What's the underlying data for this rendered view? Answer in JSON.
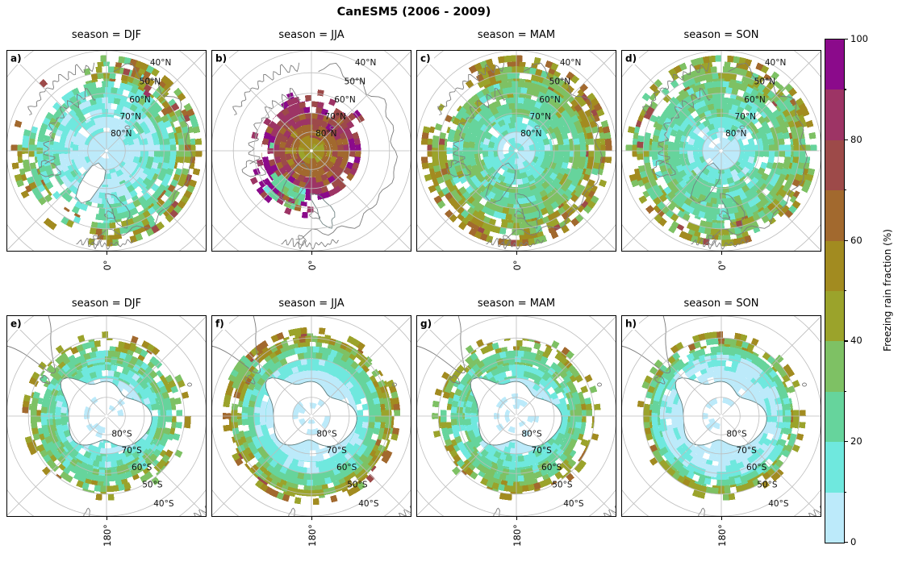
{
  "chart_data": {
    "type": "heatmap",
    "title": "CanESM5 (2006 - 2009)",
    "model": "CanESM5",
    "period": "2006 - 2009",
    "variable": "Freezing rain fraction (%)",
    "projection": "polar stereographic",
    "colorbar": {
      "label": "Freezing rain fraction (%)",
      "min": 0,
      "max": 100,
      "major_ticks": [
        0,
        20,
        40,
        60,
        80,
        100
      ],
      "minor_ticks": [
        10,
        30,
        50,
        70,
        90
      ],
      "levels": [
        0,
        10,
        20,
        30,
        40,
        50,
        60,
        70,
        80,
        90,
        100
      ],
      "colors": [
        "#bceafa",
        "#6fe8de",
        "#66d49c",
        "#7ec164",
        "#9ba32b",
        "#a28b20",
        "#a2692e",
        "#9d4a49",
        "#9d3465",
        "#8b0a8b"
      ]
    },
    "graticule": {
      "lat_interval_deg": 10,
      "lon_interval_deg": 45
    },
    "panels": [
      {
        "id": "a)",
        "title": "season = DJF",
        "season": "DJF",
        "hemisphere": "Northern",
        "x_tick": "0°",
        "lat_labels": [
          "40°N",
          "50°N",
          "60°N",
          "70°N",
          "80°N"
        ],
        "lats": [
          40,
          50,
          60,
          70,
          80
        ],
        "seed": 11,
        "mask_land": true,
        "rings": [
          {
            "lat0": 80,
            "lat1": 90,
            "pct": 4,
            "jit": 5,
            "cov": 0.88
          },
          {
            "lat0": 72,
            "lat1": 80,
            "pct": 7,
            "jit": 6,
            "cov": 0.96
          },
          {
            "lat0": 62,
            "lat1": 72,
            "pct": 13,
            "jit": 9,
            "cov": 0.96
          },
          {
            "lat0": 54,
            "lat1": 62,
            "pct": 22,
            "jit": 11,
            "cov": 0.92,
            "gaps": [
              [
                100,
                145,
                0.55
              ]
            ]
          },
          {
            "lat0": 47,
            "lat1": 54,
            "pct": 33,
            "jit": 15,
            "cov": 0.8,
            "hot": 0.1,
            "hotv": 60,
            "gaps": [
              [
                195,
                255,
                0.12
              ],
              [
                100,
                145,
                0.3
              ]
            ]
          },
          {
            "lat0": 42,
            "lat1": 47,
            "pct": 44,
            "jit": 18,
            "cov": 0.55,
            "hot": 0.14,
            "hotv": 68,
            "gaps": [
              [
                185,
                265,
                0.07
              ],
              [
                95,
                150,
                0.3
              ]
            ]
          },
          {
            "lat0": 47,
            "lat1": 55,
            "pct": 60,
            "jit": 9,
            "cov": 0.4,
            "arc": [
              282,
              334
            ],
            "hot": 0.3,
            "hotv": 75
          }
        ]
      },
      {
        "id": "b)",
        "title": "season = JJA",
        "season": "JJA",
        "hemisphere": "Northern",
        "x_tick": "0°",
        "lat_labels": [
          "40°N",
          "50°N",
          "60°N",
          "70°N",
          "80°N"
        ],
        "lats": [
          40,
          50,
          60,
          70,
          80
        ],
        "seed": 22,
        "mask_land": false,
        "rings": [
          {
            "lat0": 83,
            "lat1": 90,
            "pct": 55,
            "jit": 9,
            "cov": 1
          },
          {
            "lat0": 76,
            "lat1": 83,
            "pct": 65,
            "jit": 10,
            "cov": 1
          },
          {
            "lat0": 70,
            "lat1": 76,
            "pct": 75,
            "jit": 12,
            "cov": 0.96,
            "hot": 0.06,
            "hotv": 93
          },
          {
            "lat0": 64,
            "lat1": 70,
            "pct": 82,
            "jit": 14,
            "cov": 0.72,
            "hot": 0.12,
            "hotv": 94
          },
          {
            "lat0": 58,
            "lat1": 64,
            "pct": 80,
            "jit": 18,
            "cov": 0.3,
            "hot": 0.15,
            "hotv": 94,
            "arc": [
              150,
              330
            ]
          },
          {
            "lat0": 58,
            "lat1": 70,
            "pct": 24,
            "jit": 10,
            "cov": 0.8,
            "arc": [
              98,
              142
            ]
          },
          {
            "lat0": 55,
            "lat1": 63,
            "pct": 82,
            "jit": 16,
            "cov": 0.4,
            "arc": [
              88,
              155
            ],
            "hot": 0.2,
            "hotv": 93
          },
          {
            "lat0": 62,
            "lat1": 70,
            "pct": 26,
            "jit": 8,
            "cov": 0.15,
            "arc": [
              142,
              200
            ]
          }
        ]
      },
      {
        "id": "c)",
        "title": "season = MAM",
        "season": "MAM",
        "hemisphere": "Northern",
        "x_tick": "0°",
        "lat_labels": [
          "40°N",
          "50°N",
          "60°N",
          "70°N",
          "80°N"
        ],
        "lats": [
          40,
          50,
          60,
          70,
          80
        ],
        "seed": 33,
        "mask_land": false,
        "rings": [
          {
            "lat0": 80,
            "lat1": 90,
            "pct": 7,
            "jit": 6,
            "cov": 0.88
          },
          {
            "lat0": 72,
            "lat1": 80,
            "pct": 17,
            "jit": 8,
            "cov": 0.96
          },
          {
            "lat0": 62,
            "lat1": 72,
            "pct": 25,
            "jit": 8,
            "cov": 0.97
          },
          {
            "lat0": 54,
            "lat1": 62,
            "pct": 30,
            "jit": 12,
            "cov": 0.95
          },
          {
            "lat0": 47,
            "lat1": 54,
            "pct": 42,
            "jit": 14,
            "cov": 0.88,
            "hot": 0.12,
            "hotv": 65,
            "gaps": [
              [
                198,
                242,
                0.3
              ]
            ]
          },
          {
            "lat0": 42,
            "lat1": 47,
            "pct": 50,
            "jit": 16,
            "cov": 0.62,
            "hot": 0.12,
            "hotv": 70,
            "gaps": [
              [
                198,
                242,
                0.3
              ]
            ]
          }
        ]
      },
      {
        "id": "d)",
        "title": "season = SON",
        "season": "SON",
        "hemisphere": "Northern",
        "x_tick": "0°",
        "lat_labels": [
          "40°N",
          "50°N",
          "60°N",
          "70°N",
          "80°N"
        ],
        "lats": [
          40,
          50,
          60,
          70,
          80
        ],
        "seed": 44,
        "mask_land": false,
        "rings": [
          {
            "lat0": 80,
            "lat1": 90,
            "pct": 6,
            "jit": 6,
            "cov": 0.86
          },
          {
            "lat0": 72,
            "lat1": 80,
            "pct": 15,
            "jit": 8,
            "cov": 0.95
          },
          {
            "lat0": 62,
            "lat1": 72,
            "pct": 24,
            "jit": 8,
            "cov": 0.96
          },
          {
            "lat0": 54,
            "lat1": 62,
            "pct": 27,
            "jit": 10,
            "cov": 0.94
          },
          {
            "lat0": 47,
            "lat1": 54,
            "pct": 35,
            "jit": 13,
            "cov": 0.85,
            "hot": 0.09,
            "hotv": 63,
            "gaps": [
              [
                192,
                238,
                0.4
              ]
            ]
          },
          {
            "lat0": 42,
            "lat1": 47,
            "pct": 42,
            "jit": 16,
            "cov": 0.55,
            "hot": 0.11,
            "hotv": 68
          }
        ]
      },
      {
        "id": "e)",
        "title": "season = DJF",
        "season": "DJF",
        "hemisphere": "Southern",
        "x_tick": "180°",
        "lat_labels": [
          "80°S",
          "70°S",
          "60°S",
          "50°S",
          "40°S"
        ],
        "lats": [
          80,
          70,
          60,
          50,
          40
        ],
        "seed": 55,
        "mask_land": true,
        "rings": [
          {
            "lat0": 78,
            "lat1": 86,
            "pct": 3,
            "jit": 4,
            "cov": 0.3,
            "over": 1
          },
          {
            "lat0": 70,
            "lat1": 78,
            "pct": 7,
            "jit": 6,
            "cov": 0.85
          },
          {
            "lat0": 63,
            "lat1": 70,
            "pct": 16,
            "jit": 8,
            "cov": 0.96
          },
          {
            "lat0": 56,
            "lat1": 63,
            "pct": 25,
            "jit": 10,
            "cov": 0.96
          },
          {
            "lat0": 51,
            "lat1": 56,
            "pct": 33,
            "jit": 13,
            "cov": 0.7,
            "hot": 0.1,
            "hotv": 52
          },
          {
            "lat0": 47,
            "lat1": 51,
            "pct": 44,
            "jit": 13,
            "cov": 0.25,
            "hot": 0.1,
            "hotv": 58
          }
        ]
      },
      {
        "id": "f)",
        "title": "season = JJA",
        "season": "JJA",
        "hemisphere": "Southern",
        "x_tick": "180°",
        "lat_labels": [
          "80°S",
          "70°S",
          "60°S",
          "50°S",
          "40°S"
        ],
        "lats": [
          80,
          70,
          60,
          50,
          40
        ],
        "seed": 66,
        "mask_land": true,
        "rings": [
          {
            "lat0": 80,
            "lat1": 88,
            "pct": 3,
            "jit": 3,
            "cov": 0.3,
            "over": 1
          },
          {
            "lat0": 66,
            "lat1": 80,
            "pct": 4,
            "jit": 4,
            "cov": 0.97
          },
          {
            "lat0": 60,
            "lat1": 66,
            "pct": 13,
            "jit": 6,
            "cov": 0.97
          },
          {
            "lat0": 54,
            "lat1": 60,
            "pct": 24,
            "jit": 8,
            "cov": 0.96
          },
          {
            "lat0": 49,
            "lat1": 54,
            "pct": 41,
            "jit": 12,
            "cov": 0.9,
            "hot": 0.07,
            "hotv": 60
          },
          {
            "lat0": 45,
            "lat1": 49,
            "pct": 52,
            "jit": 14,
            "cov": 0.5,
            "hot": 0.12,
            "hotv": 72
          },
          {
            "lat0": 44,
            "lat1": 50,
            "pct": 35,
            "jit": 15,
            "cov": 0.75,
            "arc": [
              200,
              222
            ]
          }
        ]
      },
      {
        "id": "g)",
        "title": "season = MAM",
        "season": "MAM",
        "hemisphere": "Southern",
        "x_tick": "180°",
        "lat_labels": [
          "80°S",
          "70°S",
          "60°S",
          "50°S",
          "40°S"
        ],
        "lats": [
          80,
          70,
          60,
          50,
          40
        ],
        "seed": 77,
        "mask_land": true,
        "rings": [
          {
            "lat0": 78,
            "lat1": 86,
            "pct": 3,
            "jit": 4,
            "cov": 0.3,
            "over": 1
          },
          {
            "lat0": 70,
            "lat1": 78,
            "pct": 8,
            "jit": 6,
            "cov": 0.85
          },
          {
            "lat0": 63,
            "lat1": 70,
            "pct": 17,
            "jit": 8,
            "cov": 0.95
          },
          {
            "lat0": 56,
            "lat1": 63,
            "pct": 26,
            "jit": 10,
            "cov": 0.95
          },
          {
            "lat0": 51,
            "lat1": 56,
            "pct": 36,
            "jit": 13,
            "cov": 0.75,
            "hot": 0.1,
            "hotv": 56
          },
          {
            "lat0": 47,
            "lat1": 51,
            "pct": 46,
            "jit": 13,
            "cov": 0.3,
            "hot": 0.12,
            "hotv": 62
          }
        ]
      },
      {
        "id": "h)",
        "title": "season = SON",
        "season": "SON",
        "hemisphere": "Southern",
        "x_tick": "180°",
        "lat_labels": [
          "80°S",
          "70°S",
          "60°S",
          "50°S",
          "40°S"
        ],
        "lats": [
          80,
          70,
          60,
          50,
          40
        ],
        "seed": 88,
        "mask_land": true,
        "rings": [
          {
            "lat0": 80,
            "lat1": 88,
            "pct": 3,
            "jit": 3,
            "cov": 0.3,
            "over": 1
          },
          {
            "lat0": 66,
            "lat1": 80,
            "pct": 4,
            "jit": 4,
            "cov": 0.95
          },
          {
            "lat0": 58,
            "lat1": 66,
            "pct": 9,
            "jit": 6,
            "cov": 0.96
          },
          {
            "lat0": 54,
            "lat1": 58,
            "pct": 22,
            "jit": 8,
            "cov": 0.96
          },
          {
            "lat0": 50,
            "lat1": 54,
            "pct": 38,
            "jit": 12,
            "cov": 0.8,
            "hot": 0.08,
            "hotv": 58
          },
          {
            "lat0": 47,
            "lat1": 50,
            "pct": 48,
            "jit": 12,
            "cov": 0.3,
            "hot": 0.1,
            "hotv": 62
          },
          {
            "lat0": 44,
            "lat1": 50,
            "pct": 40,
            "jit": 12,
            "cov": 0.5,
            "arc": [
              200,
              222
            ]
          }
        ]
      }
    ]
  }
}
